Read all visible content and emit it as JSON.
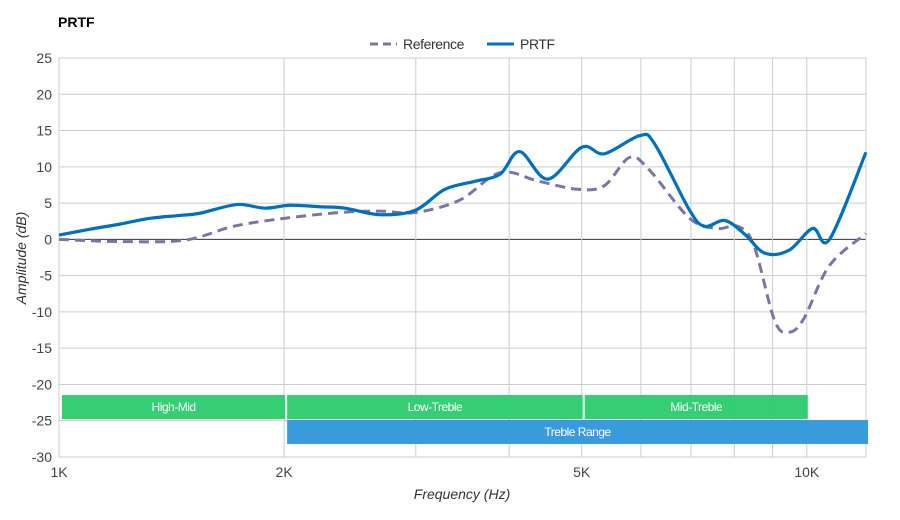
{
  "chart_data": {
    "type": "line",
    "title": "PRTF",
    "xlabel": "Frequency (Hz)",
    "ylabel": "Amplitude (dB)",
    "x_scale": "log",
    "xlim": [
      1000,
      12000
    ],
    "ylim": [
      -30,
      25
    ],
    "grid": true,
    "legend": "top-center",
    "x_ticks": [
      {
        "value": 1000,
        "label": "1K"
      },
      {
        "value": 2000,
        "label": "2K"
      },
      {
        "value": 5000,
        "label": "5K"
      },
      {
        "value": 10000,
        "label": "10K"
      }
    ],
    "x_minor_grid": [
      3000,
      4000,
      6000,
      7000,
      8000,
      9000
    ],
    "y_ticks": [
      25,
      20,
      15,
      10,
      5,
      0,
      -5,
      -10,
      -15,
      -20,
      -25,
      -30
    ],
    "series": [
      {
        "name": "Reference",
        "style": "dashed",
        "color": "#7b74a8",
        "x": [
          1000,
          1206,
          1474,
          1712,
          2000,
          2374,
          2686,
          2993,
          3433,
          3891,
          4385,
          4942,
          5361,
          5796,
          6165,
          6971,
          7580,
          8083,
          8495,
          9057,
          9468,
          9913,
          10724,
          11998
        ],
        "y": [
          0,
          -0.3,
          -0.1,
          1.8,
          2.9,
          3.7,
          3.9,
          3.7,
          5.4,
          9.2,
          8.0,
          6.9,
          7.4,
          11.3,
          9.5,
          2.9,
          1.5,
          1.8,
          -0.8,
          -11.2,
          -12.8,
          -10.9,
          -3.6,
          0.8
        ]
      },
      {
        "name": "PRTF",
        "style": "solid",
        "color": "#0070c0",
        "x": [
          1000,
          1100,
          1206,
          1323,
          1451,
          1543,
          1729,
          1885,
          2036,
          2233,
          2413,
          2686,
          2993,
          3281,
          3599,
          3891,
          4131,
          4504,
          5003,
          5361,
          5979,
          6265,
          6971,
          7304,
          7770,
          8262,
          8787,
          9468,
          10183,
          10724,
          11998
        ],
        "y": [
          0.6,
          1.4,
          2.1,
          2.9,
          3.3,
          3.6,
          4.8,
          4.3,
          4.7,
          4.5,
          4.3,
          3.4,
          4.0,
          6.9,
          8.0,
          9.0,
          12.1,
          8.3,
          12.7,
          11.8,
          14.3,
          13.1,
          4.0,
          1.8,
          2.6,
          0.7,
          -1.9,
          -1.5,
          1.5,
          0,
          12.0
        ]
      }
    ],
    "bands": [
      {
        "label": "High-Mid",
        "from": 1000,
        "to": 2000,
        "row": 0,
        "color": "#2ecc71"
      },
      {
        "label": "Low-Treble",
        "from": 2000,
        "to": 5000,
        "row": 0,
        "color": "#2ecc71"
      },
      {
        "label": "Mid-Treble",
        "from": 5000,
        "to": 10000,
        "row": 0,
        "color": "#2ecc71"
      },
      {
        "label": "Treble Range",
        "from": 2000,
        "to": 12000,
        "row": 1,
        "color": "#3498db"
      }
    ]
  }
}
